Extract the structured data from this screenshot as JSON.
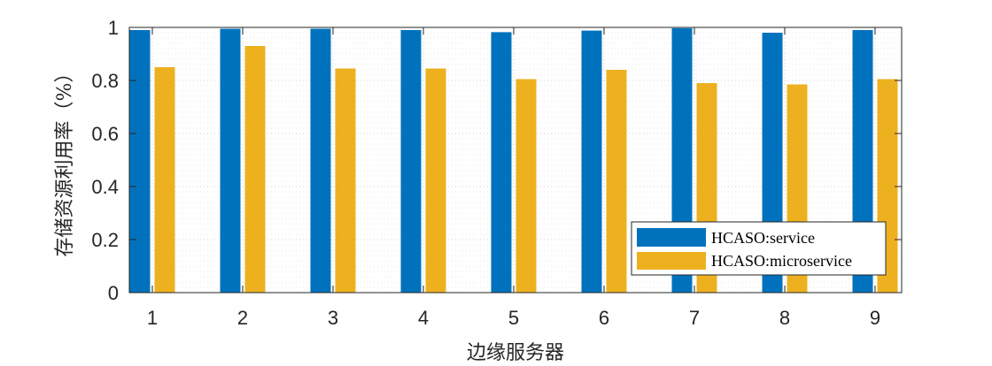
{
  "chart_data": {
    "type": "bar",
    "title": "",
    "xlabel": "边缘服务器",
    "ylabel": "存储资源利用率（%）",
    "categories": [
      "1",
      "2",
      "3",
      "4",
      "5",
      "6",
      "7",
      "8",
      "9"
    ],
    "yticks": [
      "0",
      "0.2",
      "0.4",
      "0.6",
      "0.8",
      "1"
    ],
    "ylim": [
      0,
      1
    ],
    "grid": true,
    "legend_position": "bottom-right",
    "series": [
      {
        "name": "HCASO:service",
        "color": "#0072BD",
        "values": [
          0.99,
          0.995,
          0.995,
          0.99,
          0.982,
          0.988,
          0.997,
          0.98,
          0.99
        ]
      },
      {
        "name": "HCASO:microservice",
        "color": "#EDB120",
        "values": [
          0.85,
          0.93,
          0.845,
          0.845,
          0.805,
          0.84,
          0.79,
          0.785,
          0.805
        ]
      }
    ]
  }
}
